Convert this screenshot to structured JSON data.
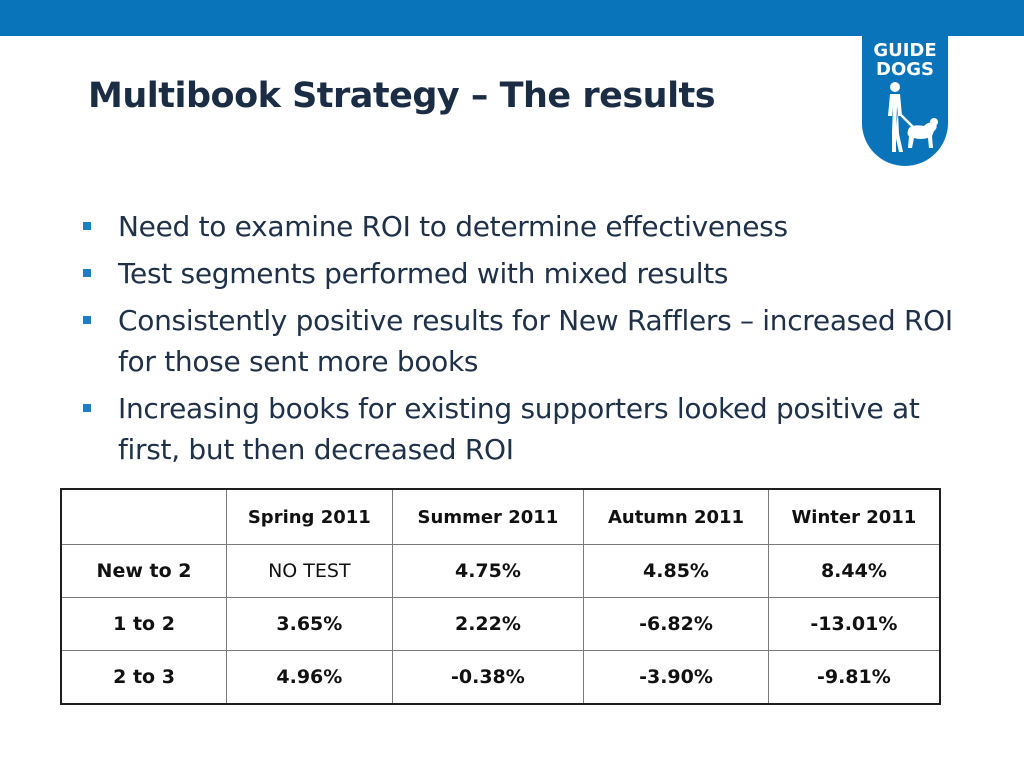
{
  "logo": {
    "line1": "GUIDE",
    "line2": "DOGS",
    "icon": "guide-dog-figure-icon",
    "color": "#0a74bb"
  },
  "title": "Multibook Strategy – The results",
  "bullets": [
    "Need to examine ROI to determine effectiveness",
    "Test segments performed with mixed results",
    "Consistently positive results for New Rafflers – increased ROI for those sent more books",
    "Increasing books for existing supporters looked positive at first, but then decreased ROI"
  ],
  "table": {
    "corner": "",
    "columns": [
      "Spring 2011",
      "Summer 2011",
      "Autumn 2011",
      "Winter 2011"
    ],
    "rows": [
      {
        "label": "New to 2",
        "values": [
          "NO TEST",
          "4.75%",
          "4.85%",
          "8.44%"
        ]
      },
      {
        "label": "1 to 2",
        "values": [
          "3.65%",
          "2.22%",
          "-6.82%",
          "-13.01%"
        ]
      },
      {
        "label": "2 to 3",
        "values": [
          "4.96%",
          "-0.38%",
          "-3.90%",
          "-9.81%"
        ]
      }
    ]
  },
  "colors": {
    "accent": "#0a74bb",
    "positive": "#0b9a2c",
    "negative": "#c1121f",
    "title": "#1b2c45"
  }
}
